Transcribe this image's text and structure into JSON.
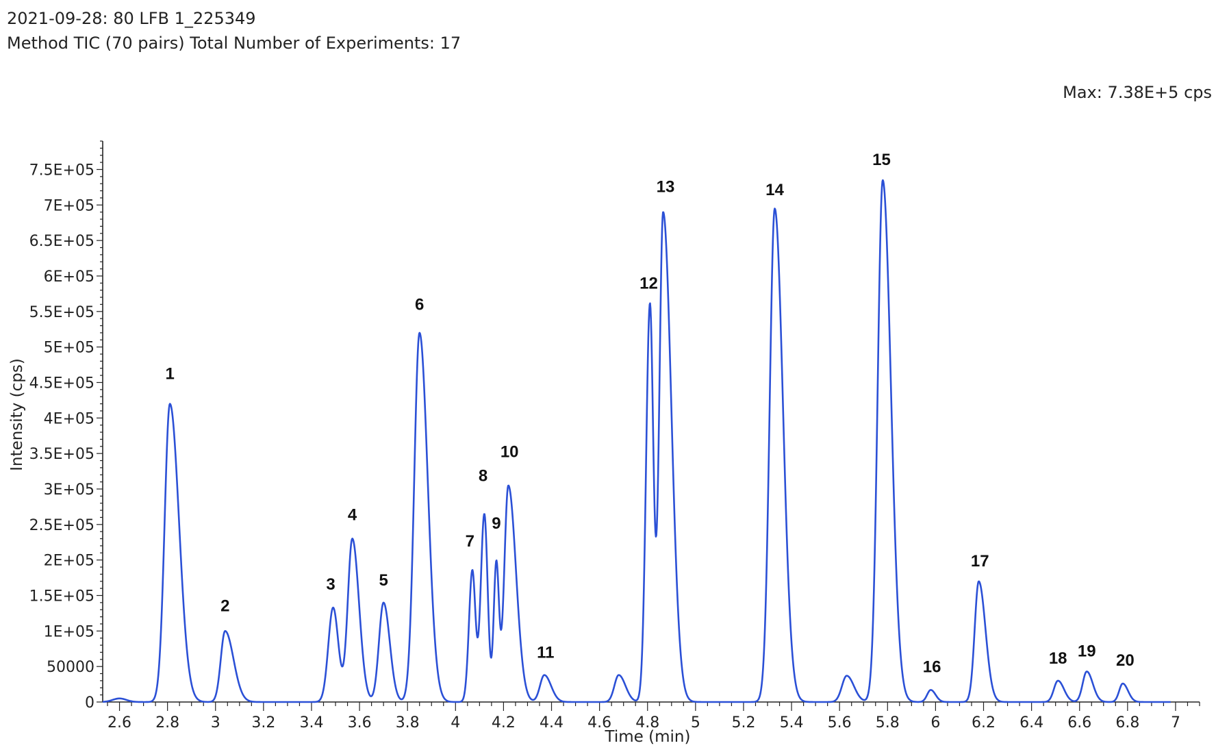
{
  "header": {
    "line1": "2021-09-28: 80 LFB 1_225349",
    "line2": "Method TIC (70 pairs) Total Number of Experiments: 17",
    "max_label": "Max: 7.38E+5 cps"
  },
  "chart_data": {
    "type": "line",
    "title": "",
    "xlabel": "Time (min)",
    "ylabel": "Intensity (cps)",
    "xlim": [
      2.53,
      7.1
    ],
    "ylim": [
      0,
      790000
    ],
    "grid": false,
    "line_color": "#2b50d6",
    "x_ticks": [
      2.6,
      2.8,
      3,
      3.2,
      3.4,
      3.6,
      3.8,
      4,
      4.2,
      4.4,
      4.6,
      4.8,
      5,
      5.2,
      5.4,
      5.6,
      5.8,
      6,
      6.2,
      6.4,
      6.6,
      6.8,
      7
    ],
    "x_tick_labels": [
      "2.6",
      "2.8",
      "3",
      "3.2",
      "3.4",
      "3.6",
      "3.8",
      "4",
      "4.2",
      "4.4",
      "4.6",
      "4.8",
      "5",
      "5.2",
      "5.4",
      "5.6",
      "5.8",
      "6",
      "6.2",
      "6.4",
      "6.6",
      "6.8",
      "7"
    ],
    "y_ticks": [
      0,
      50000,
      100000,
      150000,
      200000,
      250000,
      300000,
      350000,
      400000,
      450000,
      500000,
      550000,
      600000,
      650000,
      700000,
      750000
    ],
    "y_tick_labels": [
      "0",
      "50000",
      "1E+05",
      "1.5E+05",
      "2E+05",
      "2.5E+05",
      "3E+05",
      "3.5E+05",
      "4E+05",
      "4.5E+05",
      "5E+05",
      "5.5E+05",
      "6E+05",
      "6.5E+05",
      "7E+05",
      "7.5E+05"
    ],
    "peaks": [
      {
        "rt": 2.81,
        "height": 420000,
        "sl": 0.022,
        "sr": 0.038
      },
      {
        "rt": 3.04,
        "height": 100000,
        "sl": 0.018,
        "sr": 0.035
      },
      {
        "rt": 3.49,
        "height": 133000,
        "sl": 0.02,
        "sr": 0.022
      },
      {
        "rt": 3.57,
        "height": 230000,
        "sl": 0.019,
        "sr": 0.028
      },
      {
        "rt": 3.7,
        "height": 140000,
        "sl": 0.019,
        "sr": 0.026
      },
      {
        "rt": 3.85,
        "height": 520000,
        "sl": 0.022,
        "sr": 0.034
      },
      {
        "rt": 4.07,
        "height": 185000,
        "sl": 0.014,
        "sr": 0.013
      },
      {
        "rt": 4.12,
        "height": 265000,
        "sl": 0.015,
        "sr": 0.014
      },
      {
        "rt": 4.17,
        "height": 195000,
        "sl": 0.011,
        "sr": 0.011
      },
      {
        "rt": 4.22,
        "height": 305000,
        "sl": 0.017,
        "sr": 0.032
      },
      {
        "rt": 4.37,
        "height": 38000,
        "sl": 0.018,
        "sr": 0.028
      },
      {
        "rt": 4.68,
        "height": 38000,
        "sl": 0.018,
        "sr": 0.028
      },
      {
        "rt": 4.81,
        "height": 560000,
        "sl": 0.016,
        "sr": 0.014
      },
      {
        "rt": 4.865,
        "height": 690000,
        "sl": 0.016,
        "sr": 0.034
      },
      {
        "rt": 5.33,
        "height": 695000,
        "sl": 0.021,
        "sr": 0.034
      },
      {
        "rt": 5.63,
        "height": 37000,
        "sl": 0.02,
        "sr": 0.03
      },
      {
        "rt": 5.78,
        "height": 735000,
        "sl": 0.021,
        "sr": 0.034
      },
      {
        "rt": 5.98,
        "height": 17000,
        "sl": 0.015,
        "sr": 0.02
      },
      {
        "rt": 6.18,
        "height": 170000,
        "sl": 0.017,
        "sr": 0.028
      },
      {
        "rt": 6.51,
        "height": 30000,
        "sl": 0.017,
        "sr": 0.025
      },
      {
        "rt": 6.63,
        "height": 43000,
        "sl": 0.017,
        "sr": 0.025
      },
      {
        "rt": 6.78,
        "height": 26000,
        "sl": 0.015,
        "sr": 0.022
      }
    ],
    "peak_labels": [
      {
        "text": "1",
        "x": 2.81,
        "y": 455000
      },
      {
        "text": "2",
        "x": 3.04,
        "y": 128000
      },
      {
        "text": "3",
        "x": 3.48,
        "y": 158000
      },
      {
        "text": "4",
        "x": 3.57,
        "y": 256000
      },
      {
        "text": "5",
        "x": 3.7,
        "y": 164000
      },
      {
        "text": "6",
        "x": 3.85,
        "y": 552000
      },
      {
        "text": "7",
        "x": 4.06,
        "y": 219000
      },
      {
        "text": "8",
        "x": 4.115,
        "y": 311000
      },
      {
        "text": "9",
        "x": 4.17,
        "y": 244000
      },
      {
        "text": "10",
        "x": 4.225,
        "y": 345000
      },
      {
        "text": "11",
        "x": 4.375,
        "y": 62000
      },
      {
        "text": "12",
        "x": 4.805,
        "y": 582000
      },
      {
        "text": "13",
        "x": 4.875,
        "y": 718000
      },
      {
        "text": "14",
        "x": 5.33,
        "y": 714000
      },
      {
        "text": "15",
        "x": 5.775,
        "y": 756000
      },
      {
        "text": "16",
        "x": 5.985,
        "y": 42000
      },
      {
        "text": "17",
        "x": 6.185,
        "y": 191000
      },
      {
        "text": "18",
        "x": 6.51,
        "y": 54000
      },
      {
        "text": "19",
        "x": 6.63,
        "y": 64000
      },
      {
        "text": "20",
        "x": 6.79,
        "y": 51000
      }
    ]
  }
}
